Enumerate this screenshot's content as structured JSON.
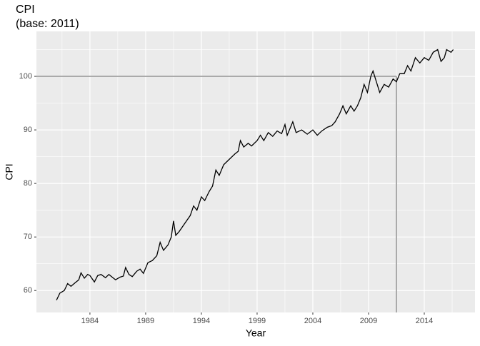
{
  "chart_data": {
    "type": "line",
    "title": "CPI",
    "subtitle": "(base: 2011)",
    "x_label": "Year",
    "y_label": "CPI",
    "x": [
      1981.0,
      1981.3,
      1981.7,
      1982.0,
      1982.3,
      1982.7,
      1983.0,
      1983.2,
      1983.5,
      1983.8,
      1984.0,
      1984.4,
      1984.7,
      1985.0,
      1985.4,
      1985.7,
      1986.0,
      1986.3,
      1986.7,
      1987.0,
      1987.2,
      1987.5,
      1987.8,
      1988.2,
      1988.5,
      1988.8,
      1989.2,
      1989.6,
      1990.0,
      1990.3,
      1990.6,
      1991.0,
      1991.3,
      1991.5,
      1991.7,
      1992.0,
      1992.5,
      1993.0,
      1993.3,
      1993.6,
      1994.0,
      1994.3,
      1994.7,
      1995.0,
      1995.3,
      1995.6,
      1996.0,
      1996.5,
      1997.0,
      1997.3,
      1997.5,
      1997.8,
      1998.2,
      1998.5,
      1999.0,
      1999.3,
      1999.6,
      2000.0,
      2000.4,
      2000.8,
      2001.2,
      2001.5,
      2001.7,
      2002.0,
      2002.2,
      2002.5,
      2003.0,
      2003.5,
      2004.0,
      2004.4,
      2004.8,
      2005.3,
      2005.7,
      2006.0,
      2006.4,
      2006.7,
      2007.0,
      2007.4,
      2007.7,
      2008.0,
      2008.3,
      2008.6,
      2008.9,
      2009.2,
      2009.4,
      2009.7,
      2010.0,
      2010.4,
      2010.8,
      2011.2,
      2011.5,
      2011.8,
      2012.2,
      2012.5,
      2012.8,
      2013.2,
      2013.6,
      2014.0,
      2014.4,
      2014.8,
      2015.2,
      2015.5,
      2015.8,
      2016.0,
      2016.4,
      2016.6
    ],
    "series": [
      {
        "name": "CPI",
        "color": "#000000",
        "values": [
          58.2,
          59.5,
          60.0,
          61.3,
          60.8,
          61.5,
          62.0,
          63.3,
          62.3,
          63.0,
          62.8,
          61.6,
          62.8,
          63.0,
          62.4,
          63.0,
          62.5,
          62.0,
          62.5,
          62.7,
          64.3,
          63.0,
          62.6,
          63.6,
          64.0,
          63.2,
          65.2,
          65.6,
          66.5,
          69.0,
          67.5,
          68.5,
          70.0,
          73.0,
          70.3,
          71.0,
          72.5,
          74.0,
          75.8,
          75.0,
          77.5,
          76.8,
          78.5,
          79.5,
          82.5,
          81.5,
          83.5,
          84.5,
          85.5,
          86.0,
          88.0,
          86.8,
          87.5,
          87.0,
          88.0,
          89.0,
          88.0,
          89.5,
          88.8,
          89.8,
          89.3,
          91.0,
          89.0,
          90.5,
          91.5,
          89.5,
          90.0,
          89.2,
          90.0,
          89.0,
          89.8,
          90.5,
          90.8,
          91.5,
          93.0,
          94.5,
          93.0,
          94.5,
          93.5,
          94.5,
          96.0,
          98.5,
          97.0,
          100.0,
          101.0,
          99.0,
          97.0,
          98.5,
          98.0,
          99.5,
          99.0,
          100.5,
          100.5,
          102.0,
          101.0,
          103.5,
          102.5,
          103.5,
          103.0,
          104.5,
          105.0,
          102.8,
          103.5,
          105.0,
          104.5,
          105.0
        ]
      }
    ],
    "hline": 100,
    "vline": 2011.5,
    "ref_color": "#aaaaaa",
    "xlim": [
      1979.2,
      2018.55
    ],
    "ylim": [
      55.9,
      108.4
    ],
    "xticks": [
      1984,
      1989,
      1994,
      1999,
      2004,
      2009,
      2014
    ],
    "yticks": [
      60,
      70,
      80,
      90,
      100
    ],
    "minor_xticks": [
      1981.5,
      1986.5,
      1991.5,
      1996.5,
      2001.5,
      2006.5,
      2011.5,
      2016.5
    ],
    "minor_yticks": [
      65,
      75,
      85,
      95,
      105
    ],
    "grid": true
  }
}
